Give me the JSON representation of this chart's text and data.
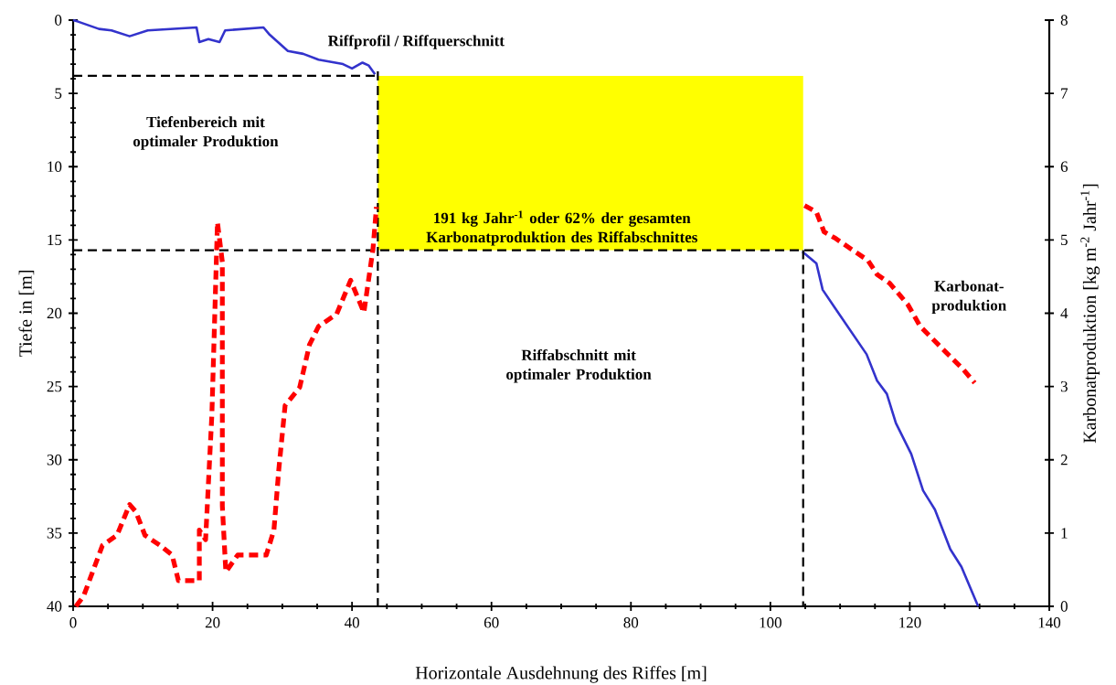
{
  "chart_data": {
    "type": "line",
    "xlabel": "Horizontale Ausdehnung des Riffes [m]",
    "ylabel": "Tiefe in [m]",
    "y2label": "Karbonatproduktion [kg m$^{-2}$ Jahr$^{-1}$]",
    "xlim": [
      0,
      140
    ],
    "xticks": [
      0,
      20,
      40,
      60,
      80,
      100,
      120,
      140
    ],
    "ylim": [
      40,
      0
    ],
    "yticks": [
      0,
      5,
      10,
      15,
      20,
      25,
      30,
      35,
      40
    ],
    "y2lim": [
      0,
      8
    ],
    "y2ticks": [
      0,
      1,
      2,
      3,
      4,
      5,
      6,
      7,
      8
    ],
    "series": [
      {
        "axis": "y",
        "color": "#3333cc",
        "line_style": "solid",
        "x": [
          0,
          0.7,
          3.7,
          5.5,
          8.1,
          10.7,
          17.7,
          18.1,
          19.4,
          21.0,
          21.8,
          27.3,
          28.2,
          30.8,
          33.0,
          35.2,
          38.7,
          40.0,
          41.5,
          42.4,
          43.3,
          74,
          104.6,
          106.6,
          107.5,
          109.2,
          113.8,
          115.3,
          116.7,
          118.0,
          120.2,
          121.9,
          123.6,
          125.8,
          127.4,
          129.8
        ],
        "values": [
          0,
          0.1,
          0.6,
          0.7,
          1.1,
          0.7,
          0.5,
          1.5,
          1.3,
          1.5,
          0.7,
          0.5,
          1.0,
          2.1,
          2.3,
          2.7,
          3.0,
          3.3,
          2.9,
          3.1,
          3.7,
          null,
          15.8,
          16.6,
          18.4,
          19.6,
          22.8,
          24.6,
          25.5,
          27.5,
          29.6,
          32.1,
          33.4,
          36.1,
          37.3,
          40.0
        ]
      },
      {
        "axis": "y2",
        "color": "#ff0000",
        "line_style": "dashed",
        "x": [
          0.4,
          1.5,
          4.2,
          6.3,
          8.1,
          9.0,
          10.3,
          12.5,
          14.2,
          15.1,
          18.1,
          18.1,
          19.0,
          19.9,
          20.7,
          21.4,
          21.4,
          21.9,
          23.6,
          27.7,
          28.8,
          29.5,
          30.4,
          32.5,
          33.9,
          35.2,
          37.8,
          39.8,
          41.7,
          43.0,
          43.5,
          74,
          104.9,
          106.6,
          107.7,
          109.2,
          114.0,
          115.3,
          117.1,
          119.7,
          121.5,
          124.1,
          127.6,
          129.3
        ],
        "values": [
          0.0,
          0.14,
          0.83,
          0.97,
          1.39,
          1.29,
          0.97,
          0.83,
          0.7,
          0.35,
          0.35,
          1.04,
          0.91,
          2.62,
          5.24,
          4.7,
          1.37,
          0.47,
          0.7,
          0.7,
          1.04,
          1.87,
          2.74,
          2.99,
          3.57,
          3.82,
          3.99,
          4.45,
          4.01,
          4.87,
          5.45,
          null,
          5.47,
          5.38,
          5.11,
          5.03,
          4.72,
          4.53,
          4.41,
          4.12,
          3.82,
          3.57,
          3.24,
          3.05
        ]
      }
    ],
    "bands": [
      {
        "axis": "x",
        "from": 43.7,
        "to": 104.7,
        "color": "#ffff00"
      }
    ],
    "ref_lines": [
      {
        "axis": "y",
        "value": 3.8,
        "color": "#000000",
        "line_style": "dashed"
      },
      {
        "axis": "y",
        "value": 15.7,
        "color": "#000000",
        "line_style": "dashed"
      },
      {
        "axis": "x",
        "value": 43.7,
        "color": "#000000",
        "line_style": "dashed"
      },
      {
        "axis": "x",
        "value": 104.7,
        "color": "#000000",
        "line_style": "dashed"
      }
    ],
    "annotations": [
      "Riffprofil / Riffquerschnitt",
      "Tiefenbereich mit optimaler Produktion",
      "191 kg Jahr$^{-1}$ oder 62% der gesamten Karbonatproduktion des Riffabschnittes",
      "Riffabschnitt mit optimaler Produktion",
      "Karbonat-produktion"
    ]
  }
}
